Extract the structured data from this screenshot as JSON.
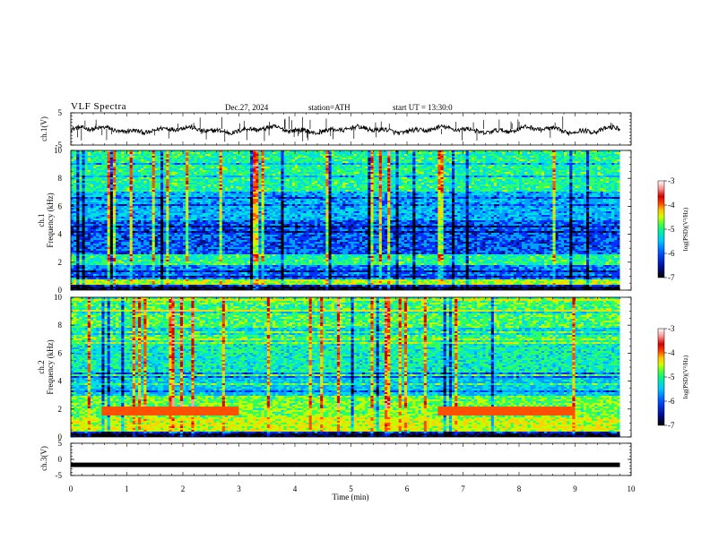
{
  "header": {
    "title": "VLF  Spectra",
    "date": "Dec.27, 2024",
    "station": "station=ATH",
    "start_ut": "start  UT  =   13:30:0"
  },
  "chart_data": [
    {
      "type": "line",
      "panel": "ch1-waveform",
      "ylabel": "ch.1(V)",
      "ylim": [
        -5,
        5
      ],
      "yticks": [
        5,
        -5
      ],
      "xlim": [
        0,
        10
      ],
      "baseline": 0,
      "color": "#000000"
    },
    {
      "type": "heatmap",
      "panel": "ch1-spectrogram",
      "ylabel": "ch.1\nFrequency  (kHz)",
      "ylabel_line1": "ch.1",
      "ylabel_line2": "Frequency  (kHz)",
      "ylim": [
        0,
        10
      ],
      "yticks": [
        0,
        2,
        4,
        6,
        8,
        10
      ],
      "xlim": [
        0,
        10
      ],
      "data_end_min": 9.8,
      "colorbar": {
        "label": "log(PSD)(V²/Hz)",
        "range": [
          -7,
          -3
        ],
        "ticks": [
          -3,
          -4,
          -5,
          -6,
          -7
        ]
      }
    },
    {
      "type": "heatmap",
      "panel": "ch2-spectrogram",
      "ylabel_line1": "ch.2",
      "ylabel_line2": "Frequency  (kHz)",
      "ylim": [
        0,
        10
      ],
      "yticks": [
        0,
        2,
        4,
        6,
        8,
        10
      ],
      "xlim": [
        0,
        10
      ],
      "data_end_min": 9.8,
      "colorbar": {
        "label": "log(PSD)(V²/Hz)",
        "range": [
          -7,
          -3
        ],
        "ticks": [
          -3,
          -4,
          -5,
          -6,
          -7
        ]
      }
    },
    {
      "type": "line",
      "panel": "ch3-waveform",
      "ylabel": "ch.3(V)",
      "ylim": [
        -5,
        5
      ],
      "yticks": [
        5,
        0,
        -5
      ],
      "xlim": [
        0,
        10
      ],
      "baseline": -1.7,
      "color": "#000000"
    }
  ],
  "xaxis": {
    "label": "Time  (min)",
    "ticks": [
      0,
      1,
      2,
      3,
      4,
      5,
      6,
      7,
      8,
      9,
      10
    ]
  },
  "colormap": [
    "#000000",
    "#001080",
    "#0030ff",
    "#00a0ff",
    "#00e0e0",
    "#30ff60",
    "#c0ff00",
    "#ffd000",
    "#ff5000",
    "#e00000",
    "#ffa0a0",
    "#ffffff"
  ]
}
